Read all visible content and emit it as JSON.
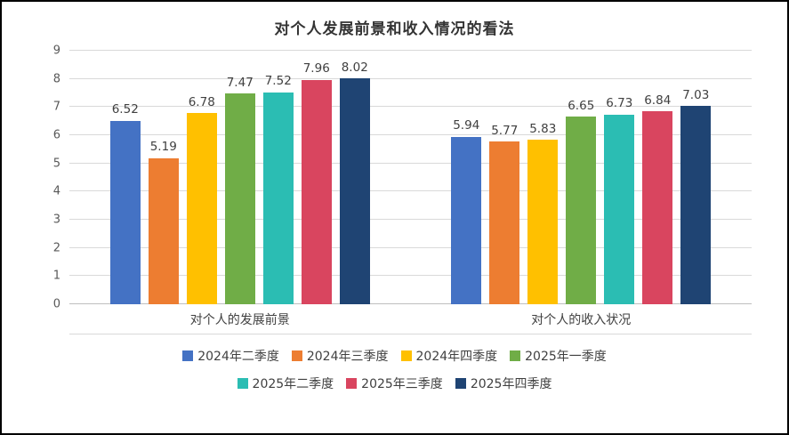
{
  "chart_data": {
    "type": "bar",
    "title": "对个人发展前景和收入情况的看法",
    "categories": [
      "对个人的发展前景",
      "对个人的收入状况"
    ],
    "series": [
      {
        "name": "2024年二季度",
        "color": "#4472C4",
        "values": [
          6.52,
          5.94
        ]
      },
      {
        "name": "2024年三季度",
        "color": "#ED7D31",
        "values": [
          5.19,
          5.77
        ]
      },
      {
        "name": "2024年四季度",
        "color": "#FFC000",
        "values": [
          6.78,
          5.83
        ]
      },
      {
        "name": "2025年一季度",
        "color": "#70AD47",
        "values": [
          7.47,
          6.65
        ]
      },
      {
        "name": "2025年二季度",
        "color": "#2BBDB3",
        "values": [
          7.52,
          6.73
        ]
      },
      {
        "name": "2025年三季度",
        "color": "#D9455F",
        "values": [
          7.96,
          6.84
        ]
      },
      {
        "name": "2025年四季度",
        "color": "#1F4473",
        "values": [
          8.02,
          7.03
        ]
      }
    ],
    "ylim": [
      0,
      9
    ],
    "ytick_step": 1,
    "grid": true,
    "legend_position": "bottom",
    "legend_rows": [
      4,
      3
    ],
    "value_decimals": 2
  }
}
